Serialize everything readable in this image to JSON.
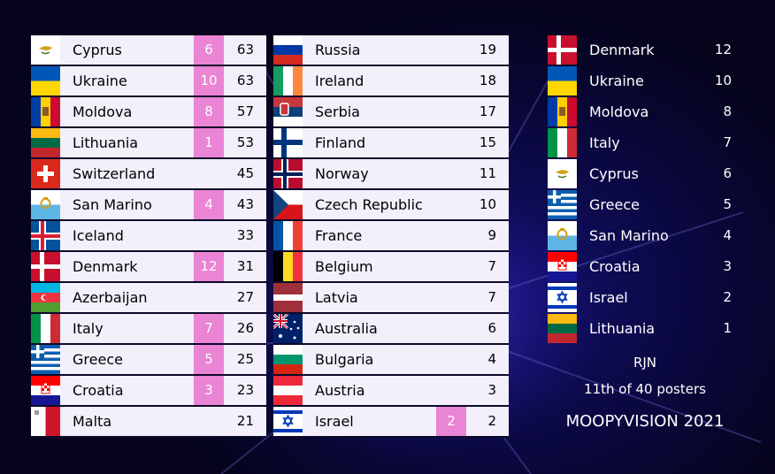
{
  "colors": {
    "points_bg": "#ea84d4",
    "row_bg": "#f3f0fb",
    "background": "#0a0840"
  },
  "scoreboard_left": [
    {
      "flag": "cyprus",
      "country": "Cyprus",
      "points": "6",
      "total": "63"
    },
    {
      "flag": "ukraine",
      "country": "Ukraine",
      "points": "10",
      "total": "63"
    },
    {
      "flag": "moldova",
      "country": "Moldova",
      "points": "8",
      "total": "57"
    },
    {
      "flag": "lithuania",
      "country": "Lithuania",
      "points": "1",
      "total": "53"
    },
    {
      "flag": "switzerland",
      "country": "Switzerland",
      "points": "",
      "total": "45"
    },
    {
      "flag": "san-marino",
      "country": "San Marino",
      "points": "4",
      "total": "43"
    },
    {
      "flag": "iceland",
      "country": "Iceland",
      "points": "",
      "total": "33"
    },
    {
      "flag": "denmark",
      "country": "Denmark",
      "points": "12",
      "total": "31"
    },
    {
      "flag": "azerbaijan",
      "country": "Azerbaijan",
      "points": "",
      "total": "27"
    },
    {
      "flag": "italy",
      "country": "Italy",
      "points": "7",
      "total": "26"
    },
    {
      "flag": "greece",
      "country": "Greece",
      "points": "5",
      "total": "25"
    },
    {
      "flag": "croatia",
      "country": "Croatia",
      "points": "3",
      "total": "23"
    },
    {
      "flag": "malta",
      "country": "Malta",
      "points": "",
      "total": "21"
    }
  ],
  "scoreboard_right": [
    {
      "flag": "russia",
      "country": "Russia",
      "points": "",
      "total": "19"
    },
    {
      "flag": "ireland",
      "country": "Ireland",
      "points": "",
      "total": "18"
    },
    {
      "flag": "serbia",
      "country": "Serbia",
      "points": "",
      "total": "17"
    },
    {
      "flag": "finland",
      "country": "Finland",
      "points": "",
      "total": "15"
    },
    {
      "flag": "norway",
      "country": "Norway",
      "points": "",
      "total": "11"
    },
    {
      "flag": "czech",
      "country": "Czech Republic",
      "points": "",
      "total": "10"
    },
    {
      "flag": "france",
      "country": "France",
      "points": "",
      "total": "9"
    },
    {
      "flag": "belgium",
      "country": "Belgium",
      "points": "",
      "total": "7"
    },
    {
      "flag": "latvia",
      "country": "Latvia",
      "points": "",
      "total": "7"
    },
    {
      "flag": "australia",
      "country": "Australia",
      "points": "",
      "total": "6"
    },
    {
      "flag": "bulgaria",
      "country": "Bulgaria",
      "points": "",
      "total": "4"
    },
    {
      "flag": "austria",
      "country": "Austria",
      "points": "",
      "total": "3"
    },
    {
      "flag": "israel",
      "country": "Israel",
      "points": "2",
      "total": "2"
    }
  ],
  "voter_points": [
    {
      "flag": "denmark",
      "country": "Denmark",
      "points": "12"
    },
    {
      "flag": "ukraine",
      "country": "Ukraine",
      "points": "10"
    },
    {
      "flag": "moldova",
      "country": "Moldova",
      "points": "8"
    },
    {
      "flag": "italy",
      "country": "Italy",
      "points": "7"
    },
    {
      "flag": "cyprus",
      "country": "Cyprus",
      "points": "6"
    },
    {
      "flag": "greece",
      "country": "Greece",
      "points": "5"
    },
    {
      "flag": "san-marino",
      "country": "San Marino",
      "points": "4"
    },
    {
      "flag": "croatia",
      "country": "Croatia",
      "points": "3"
    },
    {
      "flag": "israel",
      "country": "Israel",
      "points": "2"
    },
    {
      "flag": "lithuania",
      "country": "Lithuania",
      "points": "1"
    }
  ],
  "footer": {
    "voter": "RJN",
    "progress": "11th of 40 posters",
    "show_title": "MOOPYVISION 2021"
  }
}
